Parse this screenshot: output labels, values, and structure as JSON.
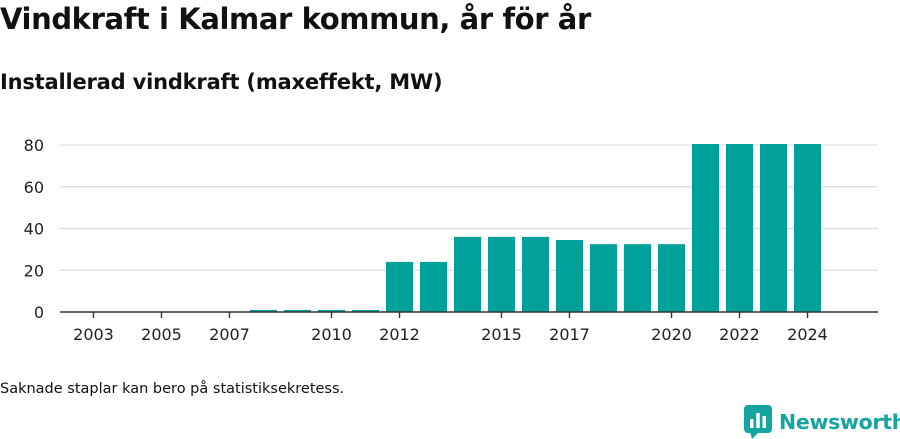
{
  "title": "Vindkraft i Kalmar kommun, år för år",
  "subtitle": "Installerad vindkraft (maxeffekt, MW)",
  "footnote": "Saknade staplar kan bero på statistiksekretess.",
  "brand": {
    "name": "Newsworthy",
    "icon": "newsworthy-logo-icon",
    "color": "#16a4a0"
  },
  "chart_data": {
    "type": "bar",
    "color": "#00a19a",
    "categories": [
      "2002",
      "2003",
      "2004",
      "2005",
      "2006",
      "2007",
      "2008",
      "2009",
      "2010",
      "2011",
      "2012",
      "2013",
      "2014",
      "2015",
      "2016",
      "2017",
      "2018",
      "2019",
      "2020",
      "2021",
      "2022",
      "2023",
      "2024"
    ],
    "values": [
      0,
      0,
      0,
      0,
      0,
      0,
      1,
      1,
      1,
      1,
      24,
      24,
      36,
      36,
      36,
      34.5,
      32.5,
      32.5,
      32.5,
      80.5,
      80.5,
      80.5,
      80.5
    ],
    "x_tick_labels": [
      "2003",
      "2005",
      "2007",
      "2010",
      "2012",
      "2015",
      "2017",
      "2020",
      "2022",
      "2024"
    ],
    "y_ticks": [
      0,
      20,
      40,
      60,
      80
    ],
    "ylim": [
      0,
      80.5
    ],
    "grid": "horizontal",
    "legend": "none",
    "xlabel": "",
    "ylabel": ""
  }
}
